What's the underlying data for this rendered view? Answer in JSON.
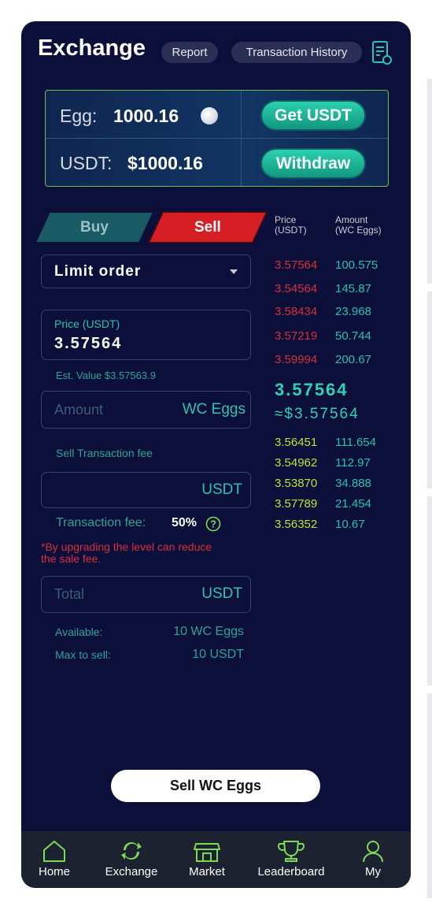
{
  "header": {
    "title": "Exchange",
    "report_label": "Report",
    "history_label": "Transaction History",
    "doc_icon": "receipt-icon"
  },
  "balance": {
    "egg_label": "Egg:",
    "egg_value": "1000.16",
    "usdt_label": "USDT:",
    "usdt_value": "$1000.16",
    "get_usdt_label": "Get USDT",
    "withdraw_label": "Withdraw"
  },
  "tabs": {
    "buy_label": "Buy",
    "sell_label": "Sell",
    "active": "Sell"
  },
  "order_type": {
    "selected": "Limit order"
  },
  "price_field": {
    "label": "Price (USDT)",
    "value": "3.57564"
  },
  "est_value": "Est. Value $3.57563.9",
  "amount_field": {
    "placeholder": "Amount",
    "unit": "WC Eggs"
  },
  "fee_section": {
    "title": "Sell Transaction fee",
    "unit": "USDT",
    "fee_label": "Transaction fee:",
    "fee_value": "50%",
    "warning_line1": "*By upgrading the level can reduce",
    "warning_line2": "the sale fee."
  },
  "total_field": {
    "placeholder": "Total",
    "unit": "USDT"
  },
  "available": {
    "available_label": "Available:",
    "available_value": "10 WC Eggs",
    "max_label": "Max to sell:",
    "max_value": "10 USDT"
  },
  "orderbook": {
    "price_header_1": "Price",
    "price_header_2": "(USDT)",
    "amount_header_1": "Amount",
    "amount_header_2": "(WC Eggs)",
    "asks": [
      {
        "price": "3.57564",
        "amount": "100.575"
      },
      {
        "price": "3.54564",
        "amount": "145.87"
      },
      {
        "price": "3.58434",
        "amount": "23.968"
      },
      {
        "price": "3.57219",
        "amount": "50.744"
      },
      {
        "price": "3.59994",
        "amount": "200.67"
      }
    ],
    "current_price": "3.57564",
    "current_usd": "≈$3.57564",
    "bids": [
      {
        "price": "3.56451",
        "amount": "111.654"
      },
      {
        "price": "3.54962",
        "amount": "112.97"
      },
      {
        "price": "3.53870",
        "amount": "34.888"
      },
      {
        "price": "3.57789",
        "amount": "21.454"
      },
      {
        "price": "3.56352",
        "amount": "10.67"
      }
    ]
  },
  "sell_button_label": "Sell WC Eggs",
  "nav": {
    "items": [
      {
        "label": "Home",
        "icon": "home-icon"
      },
      {
        "label": "Exchange",
        "icon": "exchange-icon"
      },
      {
        "label": "Market",
        "icon": "market-icon"
      },
      {
        "label": "Leaderboard",
        "icon": "trophy-icon"
      },
      {
        "label": "My",
        "icon": "user-icon"
      }
    ],
    "active": "Exchange"
  },
  "colors": {
    "background": "#0b0f3a",
    "accent_green": "#2cc3b0",
    "ask_red": "#d6303a",
    "bid_green": "#b8e63a",
    "sell_red": "#d61f24",
    "nav_active": "#7ed957"
  }
}
